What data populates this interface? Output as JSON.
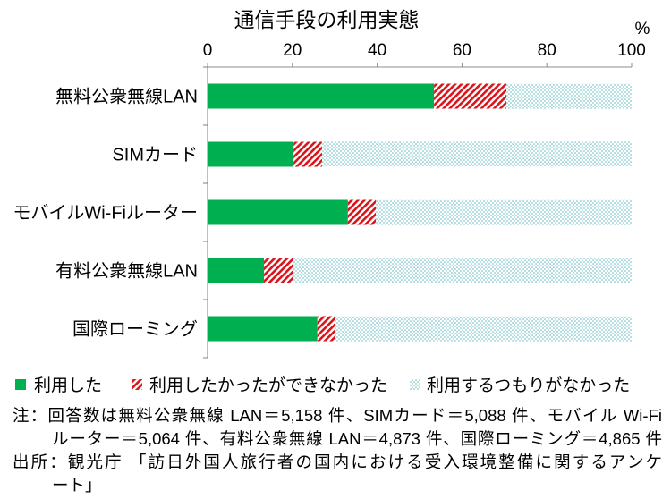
{
  "chart_data": {
    "type": "bar",
    "orientation": "horizontal",
    "stacked": true,
    "title": "通信手段の利用実態",
    "xlabel": "%",
    "categories": [
      "無料公衆無線LAN",
      "SIMカード",
      "モバイルWi-Fiルーター",
      "有料公衆無線LAN",
      "国際ローミング"
    ],
    "series": [
      {
        "name": "利用した",
        "values": [
          53.4,
          20.3,
          33.1,
          13.3,
          25.9
        ],
        "color": "#00b050",
        "fill_pattern": "solid"
      },
      {
        "name": "利用したかったができなかった",
        "values": [
          17.1,
          6.7,
          6.6,
          7.0,
          4.1
        ],
        "color": "#d9141b",
        "fill_pattern": "diagonal-hatch"
      },
      {
        "name": "利用するつもりがなかった",
        "values": [
          29.5,
          73.0,
          60.3,
          79.7,
          70.0
        ],
        "color": "#5fb9c2",
        "fill_pattern": "dots"
      }
    ],
    "xlim": [
      0,
      100
    ],
    "xticks": [
      0,
      20,
      40,
      60,
      80,
      100
    ],
    "value_axis_position": "top",
    "grid": false,
    "legend": "bottom"
  },
  "footnotes": {
    "note": [
      "注：回答数は無料公衆無線 LAN＝5,158 件、SIMカード＝5,088 件、モバイル Wi-Fi",
      "ルーター＝5,064 件、有料公衆無線 LAN＝4,873 件、国際ローミング＝4,865 件"
    ],
    "source": [
      "出所：観光庁 「訪日外国人旅行者の国内における受入環境整備に関するアンケ",
      "ート」"
    ]
  }
}
